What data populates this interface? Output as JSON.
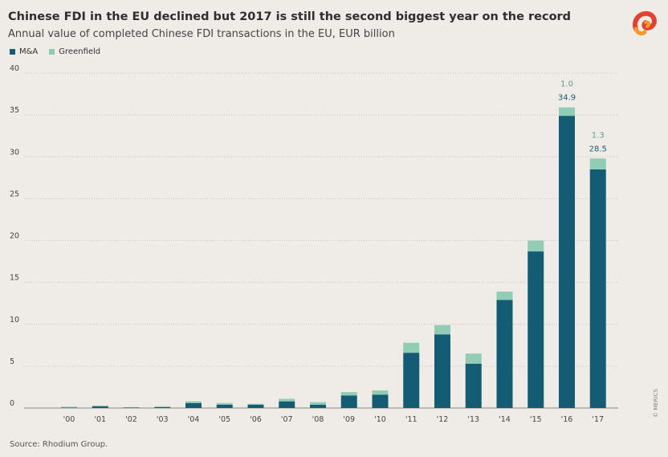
{
  "title": "Chinese FDI in the EU declined but 2017 is still the second biggest year on the record",
  "subtitle": "Annual value of completed Chinese FDI transactions in the EU, EUR billion",
  "source": "Source: Rhodium Group.",
  "credit": "© MERICS",
  "colors": {
    "ma": "#145c74",
    "greenfield": "#90cdb4",
    "grid": "#c9c4be",
    "background": "#efebe7"
  },
  "chart_data": {
    "type": "bar",
    "stacked": true,
    "categories": [
      "'00",
      "'01",
      "'02",
      "'03",
      "'04",
      "'05",
      "'06",
      "'07",
      "'08",
      "'09",
      "'10",
      "'11",
      "'12",
      "'13",
      "'14",
      "'15",
      "'16",
      "'17"
    ],
    "series": [
      {
        "name": "M&A",
        "values": [
          0.05,
          0.2,
          0.05,
          0.1,
          0.6,
          0.4,
          0.4,
          0.8,
          0.4,
          1.5,
          1.6,
          6.6,
          8.8,
          5.3,
          12.9,
          18.7,
          34.9,
          28.5
        ]
      },
      {
        "name": "Greenfield",
        "values": [
          0.1,
          0.1,
          0.05,
          0.1,
          0.2,
          0.2,
          0.1,
          0.3,
          0.3,
          0.4,
          0.5,
          1.2,
          1.1,
          1.2,
          1.0,
          1.3,
          1.0,
          1.3
        ]
      }
    ],
    "ylim": [
      0,
      40
    ],
    "yticks": [
      0,
      5,
      10,
      15,
      20,
      25,
      30,
      35,
      40
    ],
    "grid": true,
    "legend": "top-left",
    "annotations": [
      {
        "index": 16,
        "greenfield": "1.0",
        "ma": "34.9"
      },
      {
        "index": 17,
        "greenfield": "1.3",
        "ma": "28.5"
      }
    ]
  }
}
